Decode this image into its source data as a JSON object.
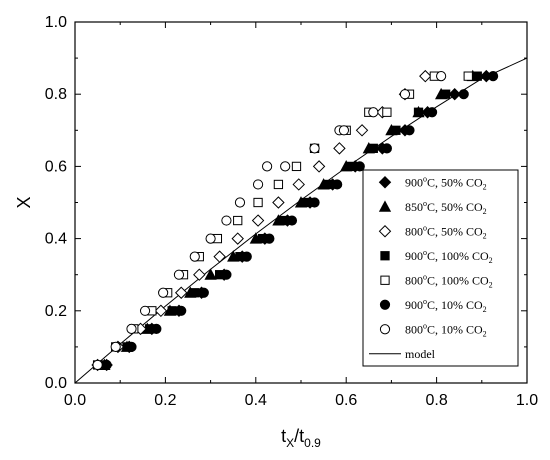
{
  "chart_data": {
    "type": "scatter",
    "title": "",
    "xlabel": {
      "main": "t",
      "sub1": "X",
      "sep": "/t",
      "sub2": "0.9"
    },
    "ylabel": "X",
    "xlim": [
      0.0,
      1.0
    ],
    "ylim": [
      0.0,
      1.0
    ],
    "xticks": [
      "0.0",
      "0.2",
      "0.4",
      "0.6",
      "0.8",
      "1.0"
    ],
    "yticks": [
      "0.0",
      "0.2",
      "0.4",
      "0.6",
      "0.8",
      "1.0"
    ],
    "grid": false,
    "legend_position": "bottom-right",
    "series": [
      {
        "name": "900°C, 50% CO2",
        "name_parts": [
          "900",
          "o",
          "C, 50% CO",
          "2"
        ],
        "marker": "diamond-filled",
        "x": [
          0.07,
          0.12,
          0.17,
          0.23,
          0.28,
          0.33,
          0.37,
          0.42,
          0.47,
          0.52,
          0.57,
          0.62,
          0.68,
          0.73,
          0.78,
          0.84,
          0.91
        ],
        "y": [
          0.05,
          0.1,
          0.15,
          0.2,
          0.25,
          0.3,
          0.35,
          0.4,
          0.45,
          0.5,
          0.55,
          0.6,
          0.65,
          0.7,
          0.75,
          0.8,
          0.85
        ]
      },
      {
        "name": "850°C, 50% CO2",
        "name_parts": [
          "850",
          "o",
          "C, 50% CO",
          "2"
        ],
        "marker": "triangle-filled",
        "x": [
          0.065,
          0.115,
          0.16,
          0.21,
          0.255,
          0.3,
          0.35,
          0.4,
          0.45,
          0.5,
          0.55,
          0.6,
          0.65,
          0.7,
          0.76,
          0.81,
          0.88
        ],
        "y": [
          0.05,
          0.1,
          0.15,
          0.2,
          0.25,
          0.3,
          0.35,
          0.4,
          0.45,
          0.5,
          0.55,
          0.6,
          0.65,
          0.7,
          0.75,
          0.8,
          0.85
        ]
      },
      {
        "name": "800°C, 50% CO2",
        "name_parts": [
          "800",
          "o",
          "C, 50% CO",
          "2"
        ],
        "marker": "diamond-open",
        "x": [
          0.05,
          0.095,
          0.145,
          0.19,
          0.235,
          0.275,
          0.32,
          0.36,
          0.405,
          0.45,
          0.495,
          0.54,
          0.585,
          0.635,
          0.68,
          0.73,
          0.775
        ],
        "y": [
          0.05,
          0.1,
          0.15,
          0.2,
          0.25,
          0.3,
          0.35,
          0.4,
          0.45,
          0.5,
          0.55,
          0.6,
          0.65,
          0.7,
          0.75,
          0.8,
          0.85
        ]
      },
      {
        "name": "900°C, 100% CO2",
        "name_parts": [
          "900",
          "o",
          "C, 100% CO",
          "2"
        ],
        "marker": "square-filled",
        "x": [
          0.065,
          0.115,
          0.165,
          0.215,
          0.265,
          0.32,
          0.365,
          0.415,
          0.46,
          0.51,
          0.56,
          0.61,
          0.66,
          0.71,
          0.76,
          0.82,
          0.89
        ],
        "y": [
          0.05,
          0.1,
          0.15,
          0.2,
          0.25,
          0.3,
          0.35,
          0.4,
          0.45,
          0.5,
          0.55,
          0.6,
          0.65,
          0.7,
          0.75,
          0.8,
          0.85
        ]
      },
      {
        "name": "800°C, 100% CO2",
        "name_parts": [
          "800",
          "o",
          "C, 100% CO",
          "2"
        ],
        "marker": "square-open",
        "x": [
          0.05,
          0.09,
          0.13,
          0.17,
          0.205,
          0.24,
          0.275,
          0.315,
          0.36,
          0.405,
          0.45,
          0.49,
          0.53,
          0.6,
          0.65,
          0.69,
          0.74,
          0.795,
          0.87
        ],
        "y": [
          0.05,
          0.1,
          0.15,
          0.2,
          0.25,
          0.3,
          0.35,
          0.4,
          0.45,
          0.5,
          0.55,
          0.6,
          0.65,
          0.7,
          0.75,
          0.75,
          0.8,
          0.85,
          0.85
        ]
      },
      {
        "name": "900°C, 10% CO2",
        "name_parts": [
          "900",
          "o",
          "C, 10% CO",
          "2"
        ],
        "marker": "circle-filled",
        "x": [
          0.07,
          0.125,
          0.18,
          0.235,
          0.285,
          0.335,
          0.38,
          0.43,
          0.48,
          0.53,
          0.58,
          0.63,
          0.69,
          0.74,
          0.79,
          0.86,
          0.925
        ],
        "y": [
          0.05,
          0.1,
          0.15,
          0.2,
          0.25,
          0.3,
          0.35,
          0.4,
          0.45,
          0.5,
          0.55,
          0.6,
          0.65,
          0.7,
          0.75,
          0.8,
          0.85
        ]
      },
      {
        "name": "800°C, 10% CO2",
        "name_parts": [
          "800",
          "o",
          "C, 10% CO",
          "2"
        ],
        "marker": "circle-open",
        "x": [
          0.05,
          0.09,
          0.125,
          0.155,
          0.195,
          0.23,
          0.265,
          0.3,
          0.335,
          0.365,
          0.405,
          0.425,
          0.465,
          0.53,
          0.585,
          0.595,
          0.66,
          0.73,
          0.81
        ],
        "y": [
          0.05,
          0.1,
          0.15,
          0.2,
          0.25,
          0.3,
          0.35,
          0.4,
          0.45,
          0.5,
          0.55,
          0.6,
          0.6,
          0.65,
          0.7,
          0.7,
          0.75,
          0.8,
          0.85
        ]
      },
      {
        "name": "model",
        "name_parts": [
          "model",
          "",
          "",
          ""
        ],
        "marker": "line",
        "x": [
          0.0,
          0.1,
          0.2,
          0.3,
          0.4,
          0.5,
          0.6,
          0.7,
          0.8,
          0.9,
          1.0
        ],
        "y": [
          0.0,
          0.108,
          0.213,
          0.315,
          0.413,
          0.507,
          0.597,
          0.683,
          0.765,
          0.843,
          0.9
        ]
      }
    ]
  }
}
